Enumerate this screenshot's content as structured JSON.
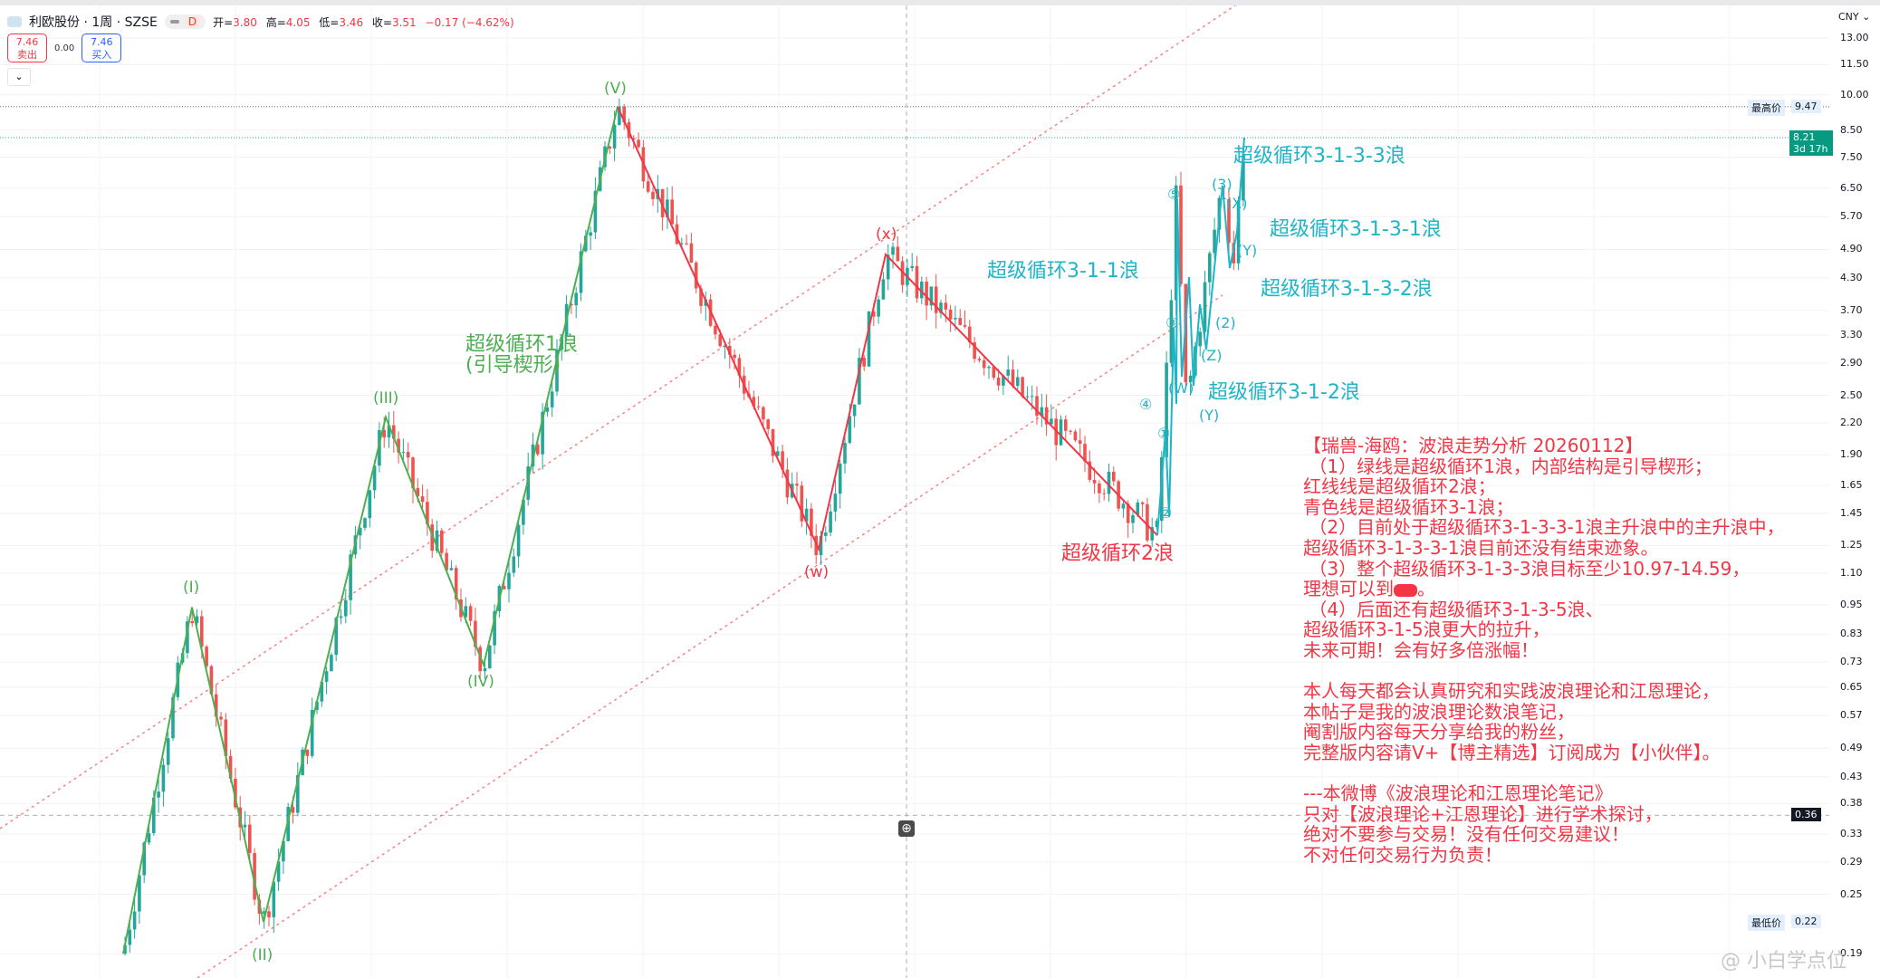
{
  "header": {
    "symbol": "利欧股份 · 1周 · SZSE",
    "badge": "D",
    "ohlc": [
      {
        "k": "开=",
        "v": "3.80"
      },
      {
        "k": "高=",
        "v": "4.05"
      },
      {
        "k": "低=",
        "v": "3.46"
      },
      {
        "k": "收=",
        "v": "3.51"
      }
    ],
    "change": "−0.17 (−4.62%)"
  },
  "trade": {
    "sell_price": "7.46",
    "sell_label": "卖出",
    "spread": "0.00",
    "buy_price": "7.46",
    "buy_label": "买入"
  },
  "currency": "CNY",
  "colors": {
    "up": "#26a69a",
    "down": "#ef5350",
    "green_wave": "#4caf50",
    "red_wave": "#f23645",
    "cyan_wave": "#1fb5c9",
    "channel": "#f77c80"
  },
  "chart_data": {
    "type": "candlestick",
    "scale": "log",
    "ylim": [
      0.19,
      13.5
    ],
    "y_ticks": [
      "13.00",
      "11.50",
      "10.00",
      "8.50",
      "7.50",
      "6.50",
      "5.70",
      "4.90",
      "4.30",
      "3.70",
      "3.30",
      "2.90",
      "2.50",
      "2.20",
      "1.90",
      "1.65",
      "1.45",
      "1.25",
      "1.10",
      "0.95",
      "0.83",
      "0.73",
      "0.65",
      "0.57",
      "0.49",
      "0.43",
      "0.38",
      "0.33",
      "0.29",
      "0.25",
      "0.19"
    ],
    "price_tags": {
      "high_label": "最高价",
      "high": "9.47",
      "last": "8.21",
      "countdown": "3d 17h",
      "cursor": "0.36",
      "low_label": "最低价",
      "low": "0.22"
    },
    "pivots": [
      {
        "label": "",
        "price": 0.19
      },
      {
        "label": "(I)",
        "price": 0.94
      },
      {
        "label": "(II)",
        "price": 0.22
      },
      {
        "label": "(III)",
        "price": 2.26
      },
      {
        "label": "(IV)",
        "price": 0.72
      },
      {
        "label": "(V)",
        "price": 9.47
      },
      {
        "label": "(w)",
        "price": 1.23
      },
      {
        "label": "(x)",
        "price": 4.79
      },
      {
        "label": "",
        "price": 1.31
      },
      {
        "label": "",
        "price": 6.3
      },
      {
        "label": "",
        "price": 2.4
      },
      {
        "label": "",
        "price": 6.75
      },
      {
        "label": "",
        "price": 4.6
      },
      {
        "label": "",
        "price": 8.21
      }
    ],
    "wave_labels": {
      "green": [
        "(I)",
        "(II)",
        "(III)",
        "(IV)",
        "(V)",
        "超级循环1浪",
        "(引导楔形)"
      ],
      "red": [
        "(w)",
        "(x)",
        "超级循环2浪"
      ],
      "cyan": [
        "①",
        "②",
        "③",
        "④",
        "⑤",
        "(W)",
        "(Y)",
        "(Z)",
        "(2)",
        "(3)",
        "(X)",
        "(Y)",
        "超级循环3-1-1浪",
        "超级循环3-1-2浪",
        "超级循环3-1-3-1浪",
        "超级循环3-1-3-2浪",
        "超级循环3-1-3-3浪"
      ]
    }
  },
  "note": {
    "lines": [
      "【瑞兽-海鸥：波浪走势分析 20260112】",
      " （1）绿线是超级循环1浪，内部结构是引导楔形；",
      "红线线是超级循环2浪；",
      "青色线是超级循环3-1浪；",
      " （2）目前处于超级循环3-1-3-3-1浪主升浪中的主升浪中，",
      "超级循环3-1-3-3-1浪目前还没有结束迹象。",
      " （3）整个超级循环3-1-3-3浪目标至少10.97-14.59，",
      "理想可以到",
      " （4）后面还有超级循环3-1-3-5浪、",
      "超级循环3-1-5浪更大的拉升，",
      "未来可期！会有好多倍涨幅！",
      "",
      "本人每天都会认真研究和实践波浪理论和江恩理论，",
      "本帖子是我的波浪理论数浪笔记，",
      "阉割版内容每天分享给我的粉丝，",
      "完整版内容请V+【博主精选】订阅成为【小伙伴】。",
      "",
      "---本微博《波浪理论和江恩理论笔记》",
      "只对【波浪理论+江恩理论】进行学术探讨，",
      "绝对不要参与交易！没有任何交易建议！",
      "不对任何交易行为负责！"
    ],
    "redacted_suffix": "。"
  },
  "watermark": "@ 小白学点位"
}
